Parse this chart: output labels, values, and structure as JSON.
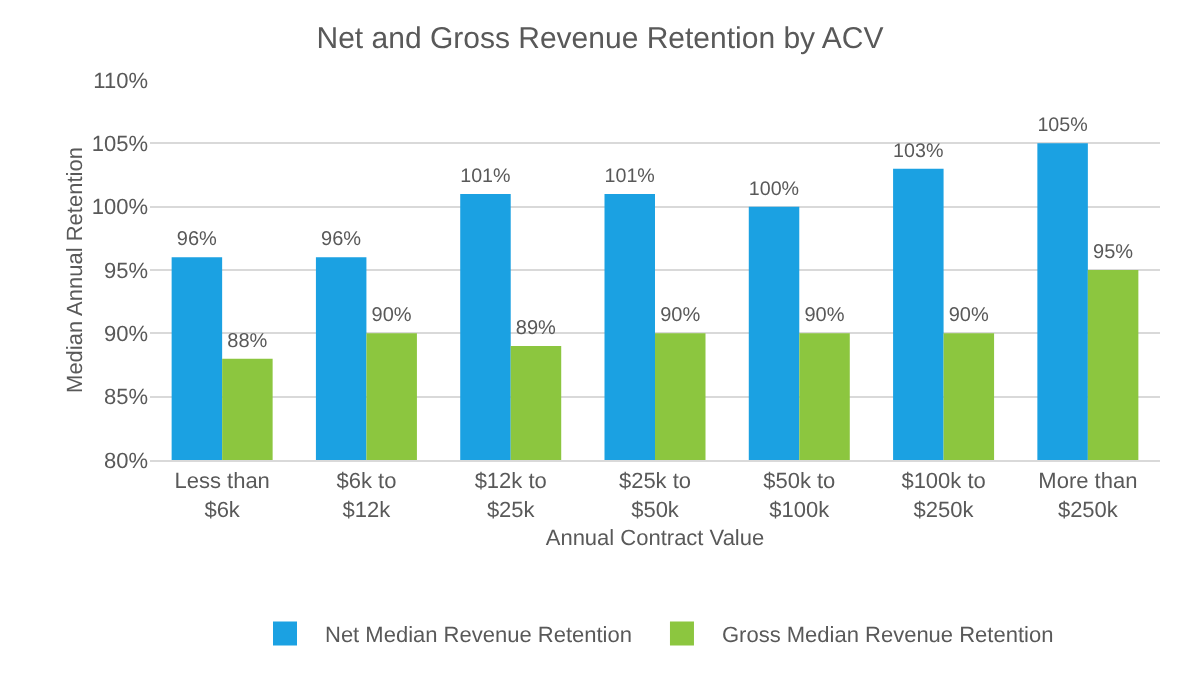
{
  "chart_data": {
    "type": "bar",
    "title": "Net and Gross Revenue Retention by ACV",
    "xlabel": "Annual Contract Value",
    "ylabel": "Median Annual Retention",
    "categories": [
      "Less than\n$6k",
      "$6k to\n$12k",
      "$12k to\n$25k",
      "$25k to\n$50k",
      "$50k to\n$100k",
      "$100k to\n$250k",
      "More than\n$250k"
    ],
    "series": [
      {
        "name": "Net Median Revenue Retention",
        "color": "#1ba1e2",
        "values": [
          96,
          96,
          101,
          101,
          100,
          103,
          105
        ],
        "value_labels": [
          "96%",
          "96%",
          "101%",
          "101%",
          "100%",
          "103%",
          "105%"
        ]
      },
      {
        "name": "Gross Median Revenue Retention",
        "color": "#8cc63f",
        "values": [
          88,
          90,
          89,
          90,
          90,
          90,
          95
        ],
        "value_labels": [
          "88%",
          "90%",
          "89%",
          "90%",
          "90%",
          "90%",
          "95%"
        ]
      }
    ],
    "ylim": [
      80,
      110
    ],
    "yticks": [
      {
        "value": 80,
        "label": "80%"
      },
      {
        "value": 85,
        "label": "85%"
      },
      {
        "value": 90,
        "label": "90%"
      },
      {
        "value": 95,
        "label": "95%"
      },
      {
        "value": 100,
        "label": "100%"
      },
      {
        "value": 105,
        "label": "105%"
      },
      {
        "value": 110,
        "label": "110%"
      }
    ],
    "grid": "y",
    "legend": "bottom"
  }
}
